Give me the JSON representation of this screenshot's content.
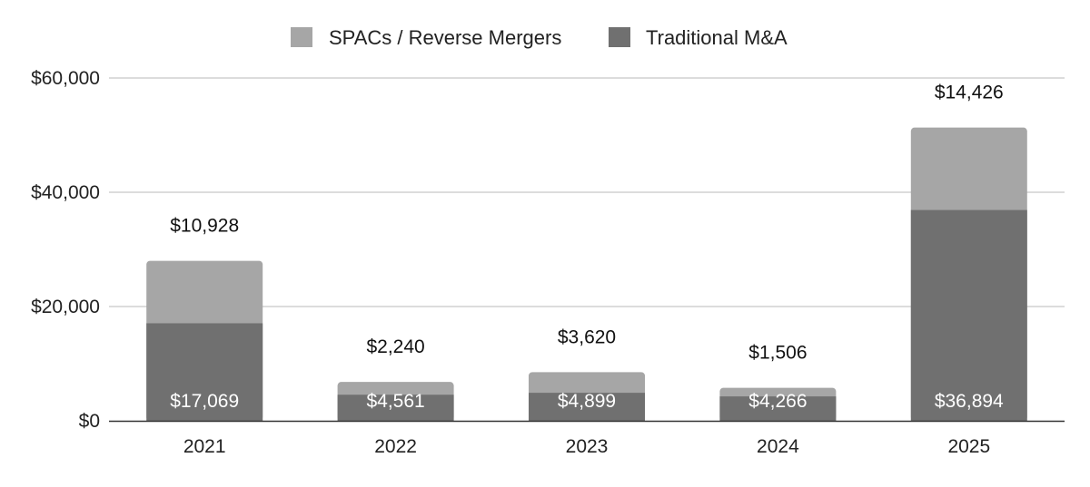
{
  "chart_data": {
    "type": "bar",
    "stacked": true,
    "title": "",
    "xlabel": "",
    "ylabel": "",
    "categories": [
      "2021",
      "2022",
      "2023",
      "2024",
      "2025"
    ],
    "series": [
      {
        "name": "Traditional M&A",
        "values": [
          17069,
          4561,
          4899,
          4266,
          36894
        ],
        "labels": [
          "$17,069",
          "$4,561",
          "$4,899",
          "$4,266",
          "$36,894"
        ],
        "color": "#707070"
      },
      {
        "name": "SPACs / Reverse Mergers",
        "values": [
          10928,
          2240,
          3620,
          1506,
          14426
        ],
        "labels": [
          "$10,928",
          "$2,240",
          "$3,620",
          "$1,506",
          "$14,426"
        ],
        "color": "#a6a6a6"
      }
    ],
    "ylim": [
      0,
      60000
    ],
    "yticks": [
      0,
      20000,
      40000,
      60000
    ],
    "ytick_labels": [
      "$0",
      "$20,000",
      "$40,000",
      "$60,000"
    ],
    "grid": true,
    "legend_position": "top-center"
  },
  "colors": {
    "grid": "#d0d0d0",
    "axis": "#333333",
    "text": "#222222"
  }
}
